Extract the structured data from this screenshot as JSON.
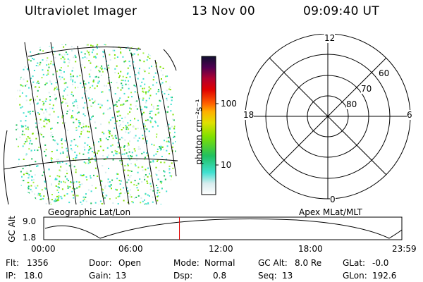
{
  "header": {
    "instrument": "Ultraviolet Imager",
    "date": "13 Nov 00",
    "time": "09:09:40 UT"
  },
  "colorbar": {
    "unit_label": "photon cm⁻²s⁻¹",
    "ticks": [
      "100",
      "10"
    ]
  },
  "polar": {
    "mlt_labels": {
      "top": "12",
      "left": "18",
      "right": "6",
      "bottom": "0"
    },
    "lat_labels": [
      "60",
      "70",
      "80"
    ]
  },
  "panels": {
    "left_caption": "Geographic Lat/Lon",
    "right_caption": "Apex MLat/MLT"
  },
  "altitude_plot": {
    "ylabel": "GC Alt",
    "yticks": [
      "9.0",
      "1.8"
    ],
    "xticks": [
      "00:00",
      "06:00",
      "12:00",
      "18:00",
      "23:59"
    ],
    "current_time_fraction": 0.379
  },
  "status": {
    "row1": [
      {
        "label": "Flt:",
        "value": "1356"
      },
      {
        "label": "Door:",
        "value": "Open"
      },
      {
        "label": "Mode:",
        "value": "Normal"
      },
      {
        "label": "GC Alt:",
        "value": "8.0 Re"
      },
      {
        "label": "GLat:",
        "value": "-0.0"
      }
    ],
    "row2": [
      {
        "label": "IP:",
        "value": "18.0"
      },
      {
        "label": "Gain:",
        "value": "13"
      },
      {
        "label": "Dsp:",
        "value": "0.8"
      },
      {
        "label": "Seq:",
        "value": "13"
      },
      {
        "label": "GLon:",
        "value": "192.6"
      }
    ]
  }
}
